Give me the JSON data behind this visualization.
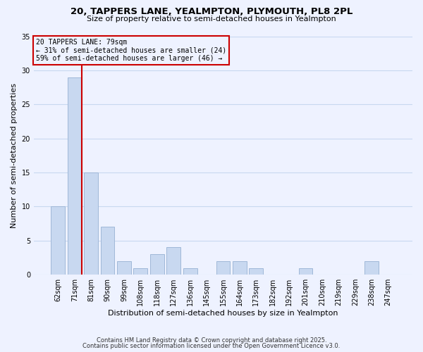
{
  "title_line1": "20, TAPPERS LANE, YEALMPTON, PLYMOUTH, PL8 2PL",
  "title_line2": "Size of property relative to semi-detached houses in Yealmpton",
  "xlabel": "Distribution of semi-detached houses by size in Yealmpton",
  "ylabel": "Number of semi-detached properties",
  "bar_labels": [
    "62sqm",
    "71sqm",
    "81sqm",
    "90sqm",
    "99sqm",
    "108sqm",
    "118sqm",
    "127sqm",
    "136sqm",
    "145sqm",
    "155sqm",
    "164sqm",
    "173sqm",
    "182sqm",
    "192sqm",
    "201sqm",
    "210sqm",
    "219sqm",
    "229sqm",
    "238sqm",
    "247sqm"
  ],
  "bar_values": [
    10,
    29,
    15,
    7,
    2,
    1,
    3,
    4,
    1,
    0,
    2,
    2,
    1,
    0,
    0,
    1,
    0,
    0,
    0,
    2,
    0
  ],
  "bar_color": "#c8d8f0",
  "bar_edgecolor": "#a0b8d8",
  "grid_color": "#c8d8f0",
  "background_color": "#eef2ff",
  "vline_color": "#cc0000",
  "annotation_title": "20 TAPPERS LANE: 79sqm",
  "annotation_line2": "← 31% of semi-detached houses are smaller (24)",
  "annotation_line3": "59% of semi-detached houses are larger (46) →",
  "annotation_box_edgecolor": "#cc0000",
  "ylim": [
    0,
    35
  ],
  "yticks": [
    0,
    5,
    10,
    15,
    20,
    25,
    30,
    35
  ],
  "footer_line1": "Contains HM Land Registry data © Crown copyright and database right 2025.",
  "footer_line2": "Contains public sector information licensed under the Open Government Licence v3.0."
}
